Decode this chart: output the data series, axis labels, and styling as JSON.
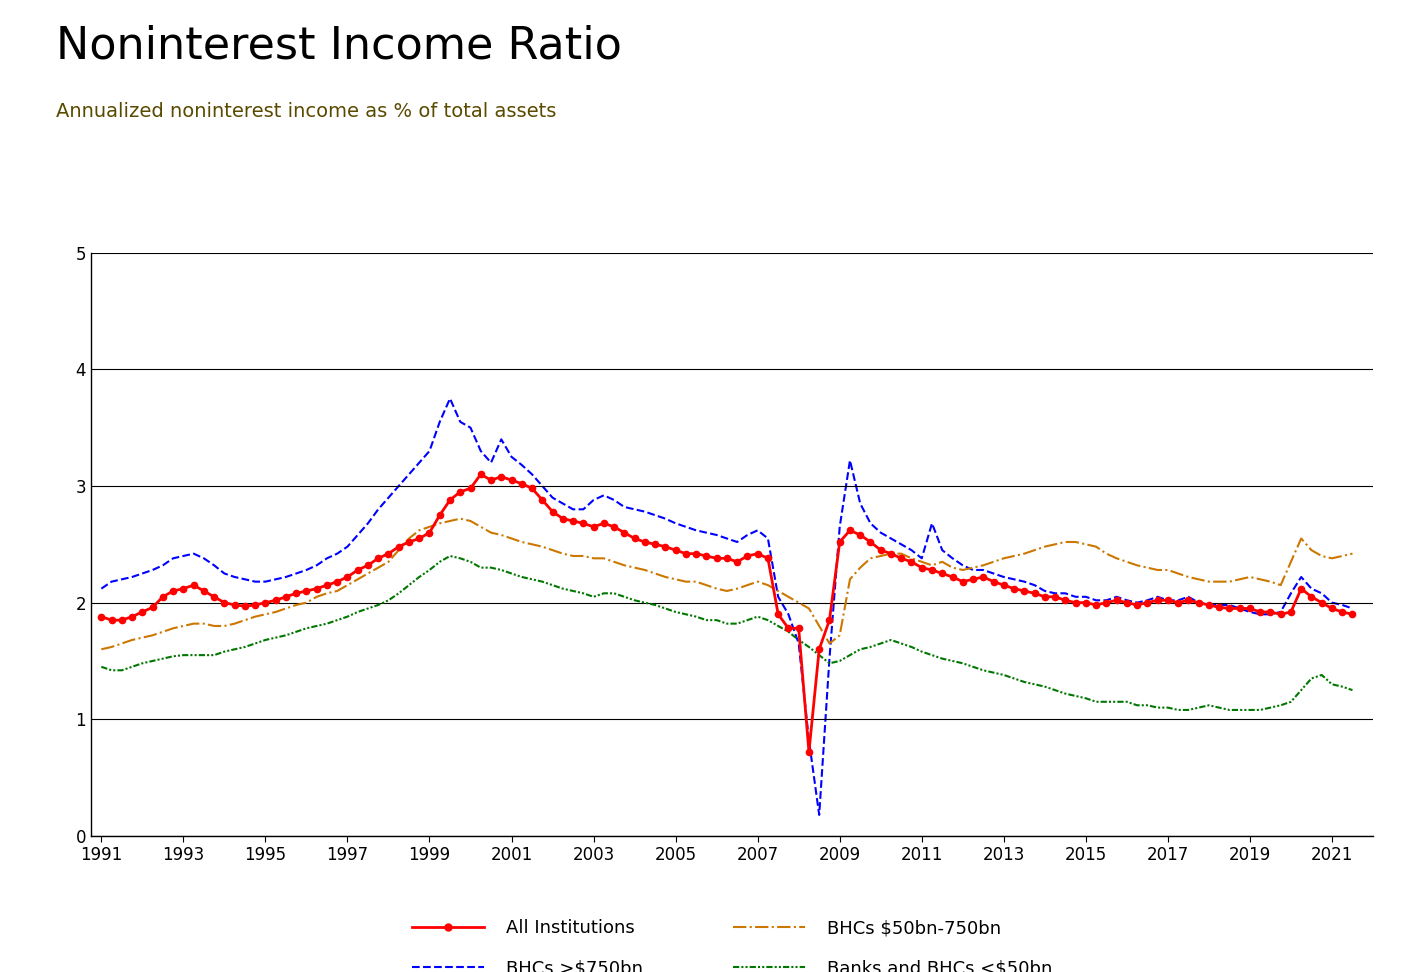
{
  "title": "Noninterest Income Ratio",
  "subtitle": "Annualized noninterest income as % of total assets",
  "ylim": [
    0,
    5
  ],
  "yticks": [
    0,
    1,
    2,
    3,
    4,
    5
  ],
  "background_color": "#ffffff",
  "title_fontsize": 32,
  "subtitle_fontsize": 14,
  "subtitle_color": "#5a4a00",
  "all_inst_color": "#ff0000",
  "bhc_large_color": "#0000ff",
  "bhc_mid_color": "#cc7700",
  "banks_small_color": "#007700",
  "years": [
    1991.0,
    1991.25,
    1991.5,
    1991.75,
    1992.0,
    1992.25,
    1992.5,
    1992.75,
    1993.0,
    1993.25,
    1993.5,
    1993.75,
    1994.0,
    1994.25,
    1994.5,
    1994.75,
    1995.0,
    1995.25,
    1995.5,
    1995.75,
    1996.0,
    1996.25,
    1996.5,
    1996.75,
    1997.0,
    1997.25,
    1997.5,
    1997.75,
    1998.0,
    1998.25,
    1998.5,
    1998.75,
    1999.0,
    1999.25,
    1999.5,
    1999.75,
    2000.0,
    2000.25,
    2000.5,
    2000.75,
    2001.0,
    2001.25,
    2001.5,
    2001.75,
    2002.0,
    2002.25,
    2002.5,
    2002.75,
    2003.0,
    2003.25,
    2003.5,
    2003.75,
    2004.0,
    2004.25,
    2004.5,
    2004.75,
    2005.0,
    2005.25,
    2005.5,
    2005.75,
    2006.0,
    2006.25,
    2006.5,
    2006.75,
    2007.0,
    2007.25,
    2007.5,
    2007.75,
    2008.0,
    2008.25,
    2008.5,
    2008.75,
    2009.0,
    2009.25,
    2009.5,
    2009.75,
    2010.0,
    2010.25,
    2010.5,
    2010.75,
    2011.0,
    2011.25,
    2011.5,
    2011.75,
    2012.0,
    2012.25,
    2012.5,
    2012.75,
    2013.0,
    2013.25,
    2013.5,
    2013.75,
    2014.0,
    2014.25,
    2014.5,
    2014.75,
    2015.0,
    2015.25,
    2015.5,
    2015.75,
    2016.0,
    2016.25,
    2016.5,
    2016.75,
    2017.0,
    2017.25,
    2017.5,
    2017.75,
    2018.0,
    2018.25,
    2018.5,
    2018.75,
    2019.0,
    2019.25,
    2019.5,
    2019.75,
    2020.0,
    2020.25,
    2020.5,
    2020.75,
    2021.0,
    2021.25,
    2021.5
  ],
  "vals_all_inst": [
    1.88,
    1.85,
    1.85,
    1.88,
    1.92,
    1.96,
    2.05,
    2.1,
    2.12,
    2.15,
    2.1,
    2.05,
    2.0,
    1.98,
    1.97,
    1.98,
    2.0,
    2.02,
    2.05,
    2.08,
    2.1,
    2.12,
    2.15,
    2.18,
    2.22,
    2.28,
    2.32,
    2.38,
    2.42,
    2.48,
    2.52,
    2.55,
    2.6,
    2.75,
    2.88,
    2.95,
    2.98,
    3.1,
    3.05,
    3.08,
    3.05,
    3.02,
    2.98,
    2.88,
    2.78,
    2.72,
    2.7,
    2.68,
    2.65,
    2.68,
    2.65,
    2.6,
    2.55,
    2.52,
    2.5,
    2.48,
    2.45,
    2.42,
    2.42,
    2.4,
    2.38,
    2.38,
    2.35,
    2.4,
    2.42,
    2.38,
    1.9,
    1.78,
    1.78,
    0.72,
    1.6,
    1.85,
    2.52,
    2.62,
    2.58,
    2.52,
    2.45,
    2.42,
    2.38,
    2.35,
    2.3,
    2.28,
    2.25,
    2.22,
    2.18,
    2.2,
    2.22,
    2.18,
    2.15,
    2.12,
    2.1,
    2.08,
    2.05,
    2.05,
    2.02,
    2.0,
    2.0,
    1.98,
    2.0,
    2.02,
    2.0,
    1.98,
    2.0,
    2.02,
    2.02,
    2.0,
    2.02,
    2.0,
    1.98,
    1.96,
    1.95,
    1.95,
    1.95,
    1.92,
    1.92,
    1.9,
    1.92,
    2.12,
    2.05,
    2.0,
    1.95,
    1.92,
    1.9
  ],
  "vals_bhc_large": [
    2.12,
    2.18,
    2.2,
    2.22,
    2.25,
    2.28,
    2.32,
    2.38,
    2.4,
    2.42,
    2.38,
    2.32,
    2.25,
    2.22,
    2.2,
    2.18,
    2.18,
    2.2,
    2.22,
    2.25,
    2.28,
    2.32,
    2.38,
    2.42,
    2.48,
    2.58,
    2.68,
    2.8,
    2.9,
    3.0,
    3.1,
    3.2,
    3.3,
    3.55,
    3.75,
    3.55,
    3.5,
    3.3,
    3.2,
    3.4,
    3.25,
    3.18,
    3.1,
    3.0,
    2.9,
    2.85,
    2.8,
    2.8,
    2.88,
    2.92,
    2.88,
    2.82,
    2.8,
    2.78,
    2.75,
    2.72,
    2.68,
    2.65,
    2.62,
    2.6,
    2.58,
    2.55,
    2.52,
    2.58,
    2.62,
    2.55,
    2.05,
    1.9,
    1.65,
    0.82,
    0.18,
    1.52,
    2.65,
    3.22,
    2.85,
    2.68,
    2.6,
    2.55,
    2.5,
    2.45,
    2.38,
    2.68,
    2.45,
    2.38,
    2.32,
    2.28,
    2.28,
    2.25,
    2.22,
    2.2,
    2.18,
    2.15,
    2.1,
    2.08,
    2.08,
    2.05,
    2.05,
    2.02,
    2.02,
    2.05,
    2.02,
    2.0,
    2.02,
    2.05,
    2.02,
    2.02,
    2.05,
    2.0,
    1.98,
    1.98,
    1.98,
    1.95,
    1.92,
    1.9,
    1.9,
    1.92,
    2.08,
    2.22,
    2.12,
    2.08,
    2.0,
    1.98,
    1.95
  ],
  "vals_bhc_mid": [
    1.6,
    1.62,
    1.65,
    1.68,
    1.7,
    1.72,
    1.75,
    1.78,
    1.8,
    1.82,
    1.82,
    1.8,
    1.8,
    1.82,
    1.85,
    1.88,
    1.9,
    1.92,
    1.95,
    1.98,
    2.0,
    2.05,
    2.08,
    2.1,
    2.15,
    2.2,
    2.25,
    2.3,
    2.35,
    2.45,
    2.55,
    2.62,
    2.65,
    2.68,
    2.7,
    2.72,
    2.7,
    2.65,
    2.6,
    2.58,
    2.55,
    2.52,
    2.5,
    2.48,
    2.45,
    2.42,
    2.4,
    2.4,
    2.38,
    2.38,
    2.35,
    2.32,
    2.3,
    2.28,
    2.25,
    2.22,
    2.2,
    2.18,
    2.18,
    2.15,
    2.12,
    2.1,
    2.12,
    2.15,
    2.18,
    2.15,
    2.1,
    2.05,
    2.0,
    1.95,
    1.8,
    1.65,
    1.72,
    2.2,
    2.3,
    2.38,
    2.4,
    2.42,
    2.42,
    2.38,
    2.35,
    2.32,
    2.35,
    2.3,
    2.28,
    2.3,
    2.32,
    2.35,
    2.38,
    2.4,
    2.42,
    2.45,
    2.48,
    2.5,
    2.52,
    2.52,
    2.5,
    2.48,
    2.42,
    2.38,
    2.35,
    2.32,
    2.3,
    2.28,
    2.28,
    2.25,
    2.22,
    2.2,
    2.18,
    2.18,
    2.18,
    2.2,
    2.22,
    2.2,
    2.18,
    2.15,
    2.35,
    2.55,
    2.45,
    2.4,
    2.38,
    2.4,
    2.42
  ],
  "vals_banks_small": [
    1.45,
    1.42,
    1.42,
    1.45,
    1.48,
    1.5,
    1.52,
    1.54,
    1.55,
    1.55,
    1.55,
    1.55,
    1.58,
    1.6,
    1.62,
    1.65,
    1.68,
    1.7,
    1.72,
    1.75,
    1.78,
    1.8,
    1.82,
    1.85,
    1.88,
    1.92,
    1.95,
    1.98,
    2.02,
    2.08,
    2.15,
    2.22,
    2.28,
    2.35,
    2.4,
    2.38,
    2.35,
    2.3,
    2.3,
    2.28,
    2.25,
    2.22,
    2.2,
    2.18,
    2.15,
    2.12,
    2.1,
    2.08,
    2.05,
    2.08,
    2.08,
    2.05,
    2.02,
    2.0,
    1.98,
    1.95,
    1.92,
    1.9,
    1.88,
    1.85,
    1.85,
    1.82,
    1.82,
    1.85,
    1.88,
    1.85,
    1.8,
    1.75,
    1.68,
    1.62,
    1.55,
    1.48,
    1.5,
    1.55,
    1.6,
    1.62,
    1.65,
    1.68,
    1.65,
    1.62,
    1.58,
    1.55,
    1.52,
    1.5,
    1.48,
    1.45,
    1.42,
    1.4,
    1.38,
    1.35,
    1.32,
    1.3,
    1.28,
    1.25,
    1.22,
    1.2,
    1.18,
    1.15,
    1.15,
    1.15,
    1.15,
    1.12,
    1.12,
    1.1,
    1.1,
    1.08,
    1.08,
    1.1,
    1.12,
    1.1,
    1.08,
    1.08,
    1.08,
    1.08,
    1.1,
    1.12,
    1.15,
    1.25,
    1.35,
    1.38,
    1.3,
    1.28,
    1.25
  ]
}
